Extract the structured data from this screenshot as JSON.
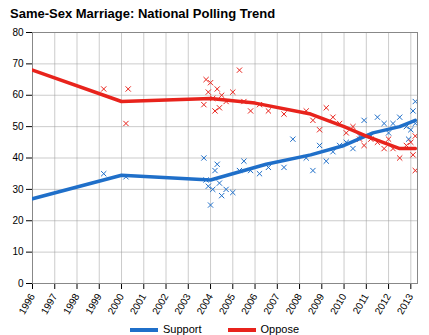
{
  "chart_data": {
    "type": "line",
    "title": "Same-Sex Marriage: National Polling Trend",
    "xlim": [
      1996,
      2013.3
    ],
    "xticks": [
      1996,
      1997,
      1998,
      1999,
      2000,
      2001,
      2002,
      2003,
      2004,
      2005,
      2006,
      2007,
      2008,
      2009,
      2010,
      2011,
      2012,
      2013
    ],
    "ylim": [
      0,
      80
    ],
    "yticks": [
      0,
      10,
      20,
      30,
      40,
      50,
      60,
      70,
      80
    ],
    "grid": true,
    "legend": "bottom",
    "series": [
      {
        "name": "Support",
        "color": "#1f6fc9",
        "type": "line",
        "line_style": "solid",
        "x": [
          1996,
          2000,
          2004,
          2006.5,
          2008.5,
          2010,
          2011.3,
          2012.5,
          2013.2
        ],
        "values": [
          27,
          34.5,
          33,
          38,
          41,
          44,
          48,
          50,
          52
        ],
        "polls": {
          "type": "scatter",
          "marker": "x",
          "x": [
            1999.2,
            2000.2,
            2003.7,
            2003.8,
            2003.9,
            2004.0,
            2004.1,
            2004.2,
            2004.3,
            2004.4,
            2004.5,
            2004.7,
            2005,
            2005.3,
            2005.5,
            2005.8,
            2006.2,
            2006.6,
            2007.3,
            2007.7,
            2008.3,
            2008.6,
            2008.9,
            2009.2,
            2009.5,
            2009.8,
            2010.1,
            2010.4,
            2010.7,
            2010.9,
            2011.2,
            2011.5,
            2011.8,
            2012.0,
            2012.2,
            2012.5,
            2012.8,
            2012.9,
            2013.0,
            2013.1,
            2013.2,
            2013.2
          ],
          "values": [
            35,
            34,
            40,
            33,
            31,
            25,
            30,
            36,
            38,
            32,
            28,
            30,
            29,
            36,
            39,
            36,
            35,
            37,
            37,
            46,
            40,
            36,
            44,
            39,
            42,
            44,
            45,
            43,
            47,
            52,
            47,
            53,
            51,
            48,
            51,
            53,
            50,
            46,
            49,
            55,
            58,
            51
          ]
        }
      },
      {
        "name": "Oppose",
        "color": "#e8231c",
        "type": "line",
        "line_style": "solid",
        "x": [
          1996,
          2000,
          2004,
          2006,
          2008.5,
          2010,
          2011,
          2012.5,
          2013.2
        ],
        "values": [
          68,
          58,
          59,
          57.5,
          54,
          50,
          47,
          43,
          43
        ],
        "polls": {
          "type": "scatter",
          "marker": "x",
          "x": [
            1999.2,
            2000.2,
            2000.3,
            2003.7,
            2003.8,
            2003.9,
            2004.0,
            2004.1,
            2004.2,
            2004.3,
            2004.4,
            2004.5,
            2004.7,
            2005,
            2005.3,
            2005.5,
            2005.8,
            2006.2,
            2006.6,
            2007.3,
            2008.3,
            2008.6,
            2008.9,
            2009.2,
            2009.5,
            2009.8,
            2010.1,
            2010.4,
            2010.7,
            2010.9,
            2011.2,
            2011.5,
            2011.8,
            2012.0,
            2012.2,
            2012.5,
            2012.8,
            2013.0,
            2013.1,
            2013.2,
            2013.2
          ],
          "values": [
            62,
            51,
            62,
            57,
            65,
            61,
            64,
            59,
            55,
            62,
            56,
            60,
            58,
            61,
            68,
            58,
            55,
            57,
            55,
            54,
            55,
            52,
            49,
            56,
            53,
            51,
            48,
            50,
            46,
            44,
            46,
            45,
            43,
            46,
            43,
            40,
            44,
            45,
            41,
            36,
            47
          ]
        }
      }
    ]
  }
}
